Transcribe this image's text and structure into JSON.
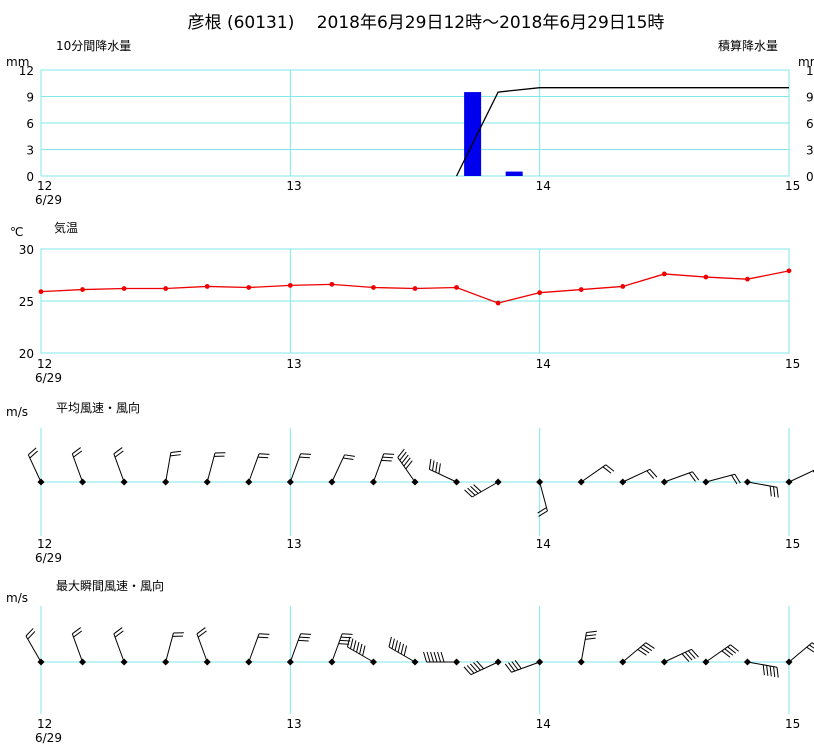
{
  "title": "彦根 (60131)　 2018年6月29日12時～2018年6月29日15時",
  "panels": {
    "precip": {
      "title": "10分間降水量",
      "unit_left": "mm",
      "title_right": "積算降水量",
      "unit_right": "mm"
    },
    "temp": {
      "title": "気温",
      "unit": "℃"
    },
    "wind": {
      "title": "平均風速・風向",
      "unit": "m/s"
    },
    "gust": {
      "title": "最大瞬間風速・風向",
      "unit": "m/s"
    }
  },
  "x_ticks": [
    "12",
    "13",
    "14",
    "15"
  ],
  "x_date": "6/29",
  "colors": {
    "grid": "#80e8e8",
    "precip_bar": "#0000ee",
    "accum_line": "#000000",
    "temp_line": "#ee0000",
    "wind": "#000000"
  },
  "chart_data": [
    {
      "type": "bar",
      "title": "10分間降水量",
      "ylabel": "mm",
      "ylim": [
        0,
        12
      ],
      "yticks": [
        0,
        3,
        6,
        9,
        12
      ],
      "x": [
        "12:10",
        "12:20",
        "12:30",
        "12:40",
        "12:50",
        "13:00",
        "13:10",
        "13:20",
        "13:30",
        "13:40",
        "13:50",
        "14:00",
        "14:10",
        "14:20",
        "14:30",
        "14:40",
        "14:50",
        "15:00"
      ],
      "values": [
        0,
        0,
        0,
        0,
        0,
        0,
        0,
        0,
        0,
        0,
        9.5,
        0.5,
        0,
        0,
        0,
        0,
        0,
        0
      ]
    },
    {
      "type": "line",
      "title": "積算降水量",
      "ylabel": "mm",
      "ylim": [
        0,
        12
      ],
      "yticks": [
        0,
        3,
        6,
        9,
        12
      ],
      "x": [
        "13:40",
        "13:50",
        "14:00",
        "15:00"
      ],
      "values": [
        0,
        9.5,
        10.0,
        10.0
      ]
    },
    {
      "type": "line",
      "title": "気温",
      "ylabel": "℃",
      "ylim": [
        20,
        30
      ],
      "yticks": [
        20,
        25,
        30
      ],
      "x": [
        "12:00",
        "12:10",
        "12:20",
        "12:30",
        "12:40",
        "12:50",
        "13:00",
        "13:10",
        "13:20",
        "13:30",
        "13:40",
        "13:50",
        "14:00",
        "14:10",
        "14:20",
        "14:30",
        "14:40",
        "14:50",
        "15:00"
      ],
      "values": [
        25.9,
        26.1,
        26.2,
        26.2,
        26.4,
        26.3,
        26.5,
        26.6,
        26.3,
        26.2,
        26.3,
        24.8,
        25.8,
        26.1,
        26.4,
        27.6,
        27.3,
        27.1,
        27.9
      ]
    },
    {
      "type": "scatter",
      "title": "平均風速・風向",
      "ylabel": "m/s",
      "x": [
        "12:00",
        "12:10",
        "12:20",
        "12:30",
        "12:40",
        "12:50",
        "13:00",
        "13:10",
        "13:20",
        "13:30",
        "13:40",
        "13:50",
        "14:00",
        "14:10",
        "14:20",
        "14:30",
        "14:40",
        "14:50",
        "15:00"
      ],
      "direction_deg": [
        335,
        340,
        340,
        10,
        15,
        20,
        20,
        25,
        20,
        325,
        295,
        240,
        165,
        55,
        65,
        70,
        75,
        100,
        65
      ],
      "speed": [
        1.5,
        1.5,
        1.5,
        1.5,
        1.5,
        1.5,
        1.5,
        1.5,
        2.5,
        4,
        3.5,
        3,
        1.5,
        2,
        2,
        2,
        2,
        2.5,
        1.5
      ]
    },
    {
      "type": "scatter",
      "title": "最大瞬間風速・風向",
      "ylabel": "m/s",
      "x": [
        "12:00",
        "12:10",
        "12:20",
        "12:30",
        "12:40",
        "12:50",
        "13:00",
        "13:10",
        "13:20",
        "13:30",
        "13:40",
        "13:50",
        "14:00",
        "14:10",
        "14:20",
        "14:30",
        "14:40",
        "14:50",
        "15:00"
      ],
      "direction_deg": [
        330,
        340,
        340,
        15,
        340,
        20,
        20,
        20,
        300,
        300,
        270,
        245,
        250,
        10,
        50,
        65,
        55,
        100,
        50
      ],
      "speed": [
        1.5,
        2,
        2,
        2,
        2,
        2,
        2.5,
        3,
        5.5,
        6.5,
        6,
        4.5,
        3.5,
        2.5,
        3,
        3.5,
        3,
        4.5,
        2.5
      ]
    }
  ]
}
